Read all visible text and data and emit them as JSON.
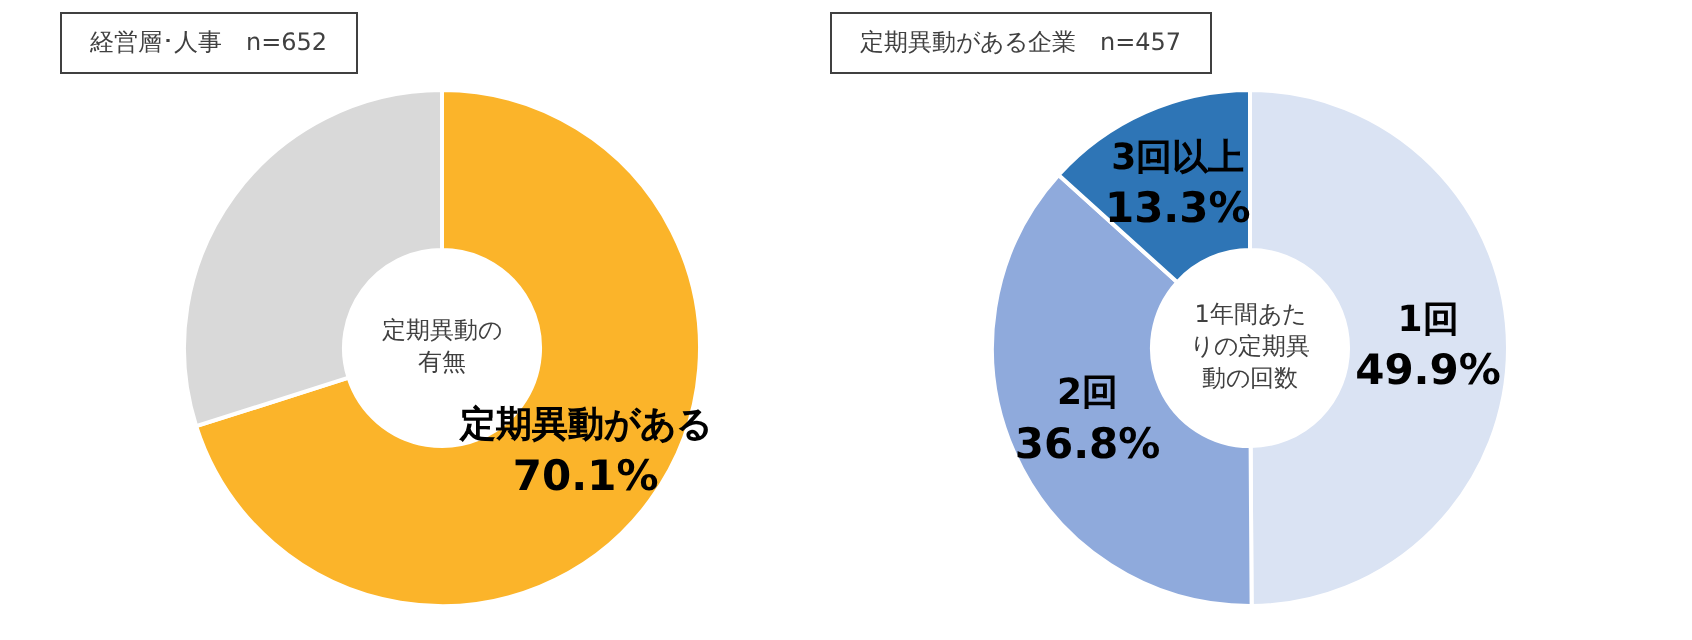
{
  "chart_data": [
    {
      "type": "donut",
      "title": "経営層･人事　n=652",
      "categories": [
        "定期異動がある",
        null
      ],
      "values": [
        70.1,
        29.9
      ],
      "colors": [
        "#fbb42a",
        "#d9d9d9"
      ],
      "value_labels": [
        "70.1%",
        null
      ],
      "annotations": [
        "定期異動の有無"
      ]
    },
    {
      "type": "donut",
      "title": "定期異動がある企業　n=457",
      "categories": [
        "1回",
        "2回",
        "3回以上"
      ],
      "values": [
        49.9,
        36.8,
        13.3
      ],
      "colors": [
        "#dae3f3",
        "#8faadc",
        "#2e75b6"
      ],
      "value_labels": [
        "49.9%",
        "36.8%",
        "13.3%"
      ],
      "annotations": [
        "1年間あたりの定期異動の回数"
      ]
    }
  ]
}
